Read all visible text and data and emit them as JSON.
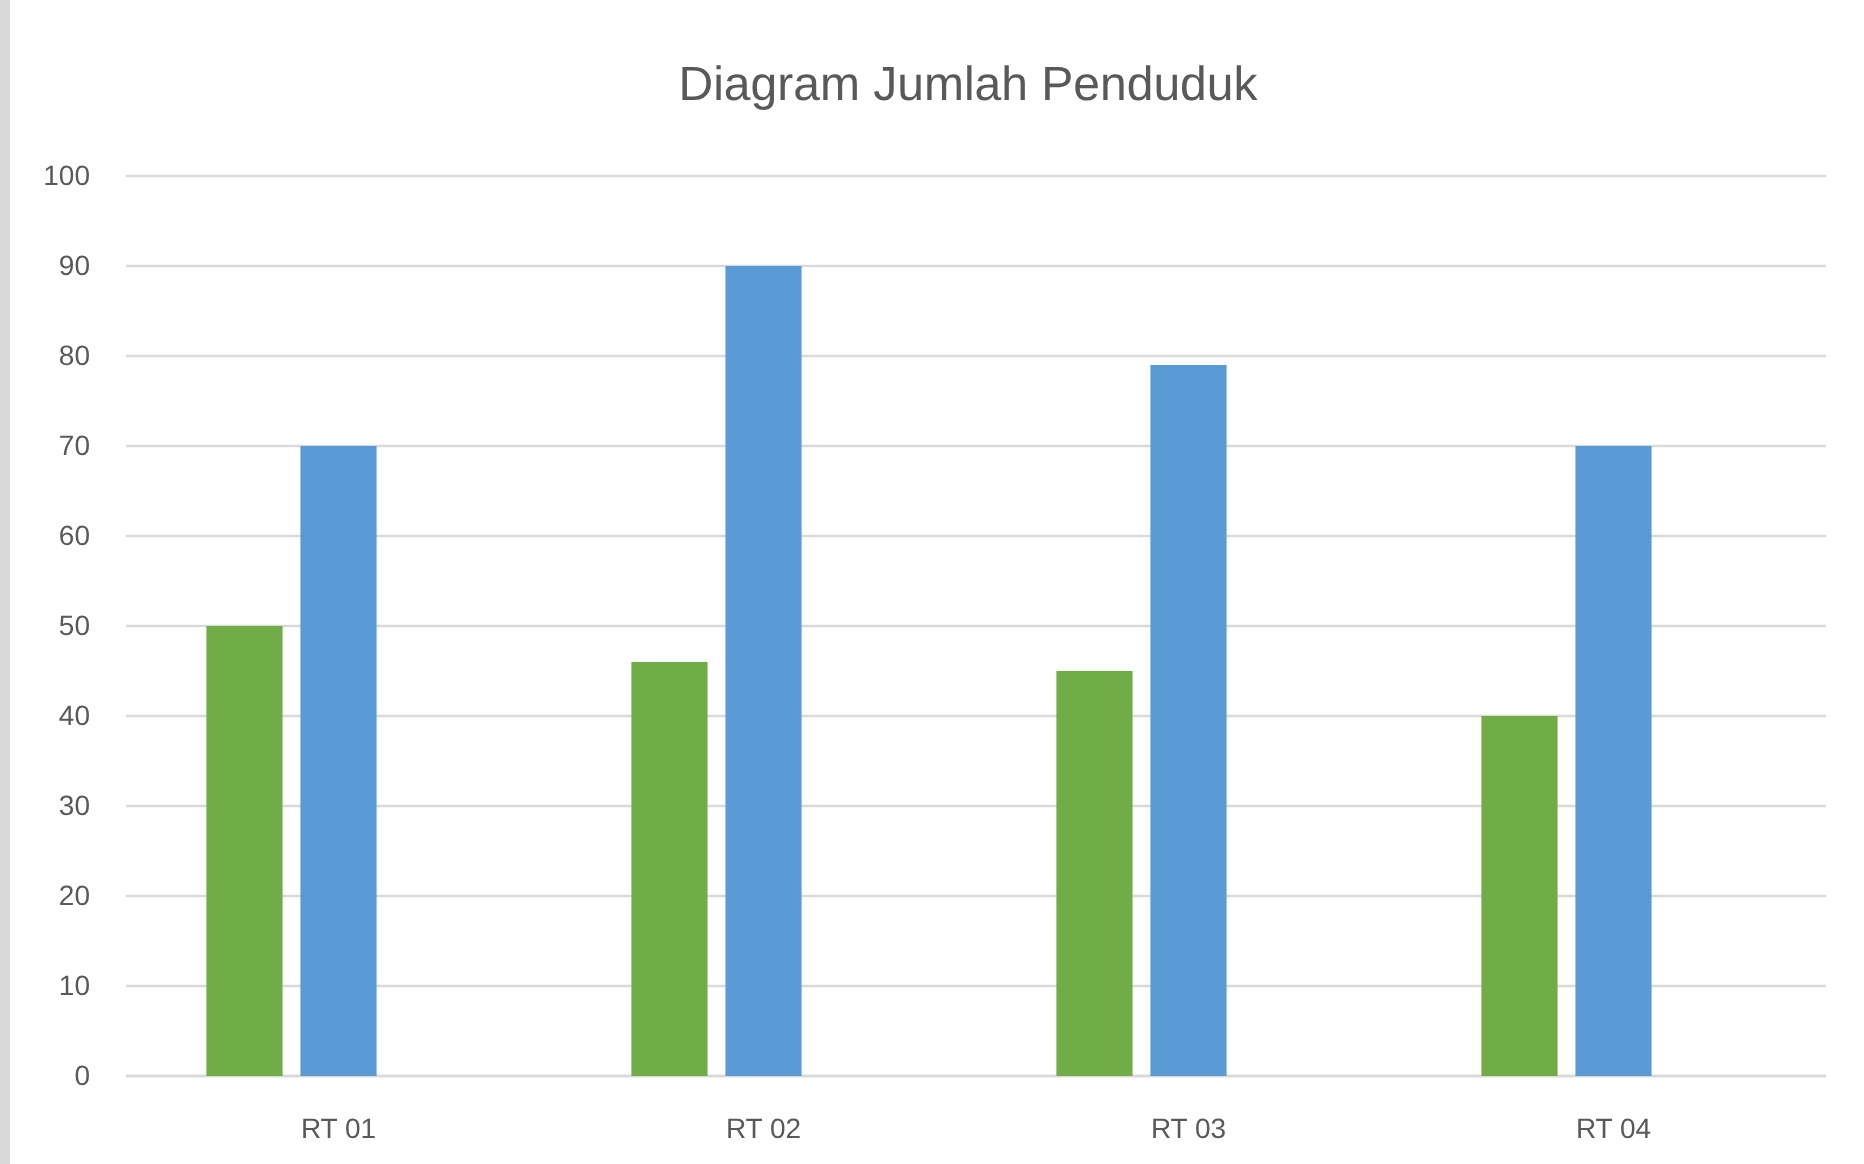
{
  "chart_data": {
    "type": "bar",
    "title": "Diagram Jumlah Penduduk",
    "categories": [
      "RT 01",
      "RT 02",
      "RT 03",
      "RT 04"
    ],
    "series": [
      {
        "color": "#70ad47",
        "values": [
          50,
          46,
          45,
          40
        ]
      },
      {
        "color": "#5b9bd5",
        "values": [
          70,
          90,
          79,
          70
        ]
      },
      {
        "values": [
          null,
          null,
          null,
          null
        ]
      }
    ],
    "ylim": [
      0,
      100
    ],
    "yticks": [
      0,
      10,
      20,
      30,
      40,
      50,
      60,
      70,
      80,
      90,
      100
    ],
    "grid": "y"
  }
}
